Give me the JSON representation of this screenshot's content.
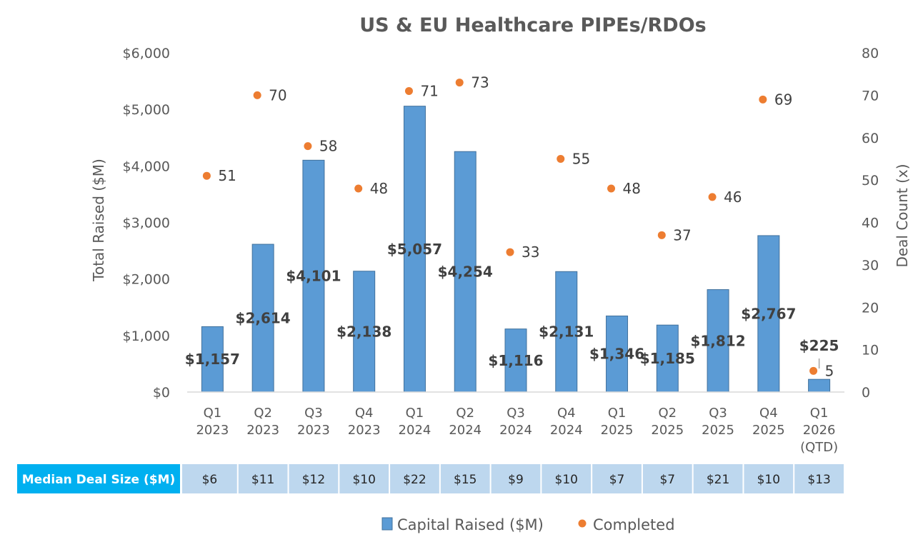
{
  "chart_data": {
    "type": "bar",
    "title": "US & EU Healthcare PIPEs/RDOs",
    "categories": [
      [
        "Q1",
        "2023"
      ],
      [
        "Q2",
        "2023"
      ],
      [
        "Q3",
        "2023"
      ],
      [
        "Q4",
        "2023"
      ],
      [
        "Q1",
        "2024"
      ],
      [
        "Q2",
        "2024"
      ],
      [
        "Q3",
        "2024"
      ],
      [
        "Q4",
        "2024"
      ],
      [
        "Q1",
        "2025"
      ],
      [
        "Q2",
        "2025"
      ],
      [
        "Q3",
        "2025"
      ],
      [
        "Q4",
        "2025"
      ],
      [
        "Q1",
        "2026",
        "(QTD)"
      ]
    ],
    "series": [
      {
        "name": "Capital Raised ($M)",
        "type": "bar",
        "axis": "left",
        "color": "#5b9bd5",
        "values": [
          1157,
          2614,
          4101,
          2138,
          5057,
          4254,
          1116,
          2131,
          1346,
          1185,
          1812,
          2767,
          225
        ],
        "labels": [
          "$1,157",
          "$2,614",
          "$4,101",
          "$2,138",
          "$5,057",
          "$4,254",
          "$1,116",
          "$2,131",
          "$1,346",
          "$1,185",
          "$1,812",
          "$2,767",
          "$225"
        ]
      },
      {
        "name": "Completed",
        "type": "scatter",
        "axis": "right",
        "color": "#ed7d31",
        "values": [
          51,
          70,
          58,
          48,
          71,
          73,
          33,
          55,
          48,
          37,
          46,
          69,
          5
        ],
        "labels": [
          "51",
          "70",
          "58",
          "48",
          "71",
          "73",
          "33",
          "55",
          "48",
          "37",
          "46",
          "69",
          "5"
        ]
      }
    ],
    "y_left": {
      "label": "Total Raised ($M)",
      "lim": [
        0,
        6000
      ],
      "ticks": [
        0,
        1000,
        2000,
        3000,
        4000,
        5000,
        6000
      ],
      "tick_labels": [
        "$0",
        "$1,000",
        "$2,000",
        "$3,000",
        "$4,000",
        "$5,000",
        "$6,000"
      ]
    },
    "y_right": {
      "label": "Deal Count (x)",
      "lim": [
        0,
        80
      ],
      "ticks": [
        0,
        10,
        20,
        30,
        40,
        50,
        60,
        70,
        80
      ],
      "tick_labels": [
        "0",
        "10",
        "20",
        "30",
        "40",
        "50",
        "60",
        "70",
        "80"
      ]
    },
    "median_row": {
      "header": "Median Deal Size ($M)",
      "values": [
        "$6",
        "$11",
        "$12",
        "$10",
        "$22",
        "$15",
        "$9",
        "$10",
        "$7",
        "$7",
        "$21",
        "$10",
        "$13"
      ],
      "header_color": "#00b0f0",
      "cell_color": "#bdd7ee"
    },
    "legend": {
      "position": "bottom",
      "items": [
        "Capital Raised ($M)",
        "Completed"
      ]
    },
    "grid": false
  }
}
